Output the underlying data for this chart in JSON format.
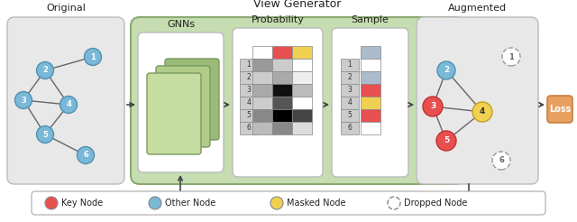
{
  "title": "View Generator",
  "original_label": "Original",
  "gnns_label": "GNNs",
  "prob_label": "Probability",
  "sample_label": "Sample",
  "augmented_label": "Augmented",
  "loss_label": "Loss",
  "legend_items": [
    {
      "label": "Key Node",
      "color": "#e85050",
      "style": "filled"
    },
    {
      "label": "Other Node",
      "color": "#7ab8d8",
      "style": "filled"
    },
    {
      "label": "Masked Node",
      "color": "#f0d050",
      "style": "filled"
    },
    {
      "label": "Dropped Node",
      "color": "#888888",
      "style": "dashed"
    }
  ],
  "bg_color": "#ffffff",
  "view_gen_bg": "#c5ddb0",
  "view_gen_edge": "#8aaa70",
  "orig_box_bg": "#e8e8e8",
  "aug_box_bg": "#e8e8e8",
  "loss_box_color": "#e8a060",
  "loss_box_edge": "#c88040",
  "node_blue": "#7ab8d8",
  "node_blue_edge": "#5090b0",
  "node_red": "#e85050",
  "node_red_edge": "#c03030",
  "node_yellow": "#f0d050",
  "node_yellow_edge": "#c0a020",
  "arrow_color": "#444444",
  "edge_color": "#666666",
  "text_color": "#222222",
  "prob_header": [
    "#ffffff",
    "#e85050",
    "#f0d050"
  ],
  "prob_colors": [
    [
      "#999999",
      "#cccccc",
      "#ffffff"
    ],
    [
      "#cccccc",
      "#aaaaaa",
      "#eeeeee"
    ],
    [
      "#aaaaaa",
      "#111111",
      "#bbbbbb"
    ],
    [
      "#cccccc",
      "#555555",
      "#ffffff"
    ],
    [
      "#888888",
      "#000000",
      "#444444"
    ],
    [
      "#bbbbbb",
      "#888888",
      "#dddddd"
    ]
  ],
  "sample_header_color": "#aabbcc",
  "sample_colors": [
    "#ffffff",
    "#aabbcc",
    "#e85050",
    "#f0d050",
    "#e85050",
    "#ffffff"
  ],
  "row_labels": [
    "1",
    "2",
    "3",
    "4",
    "5",
    "6"
  ]
}
